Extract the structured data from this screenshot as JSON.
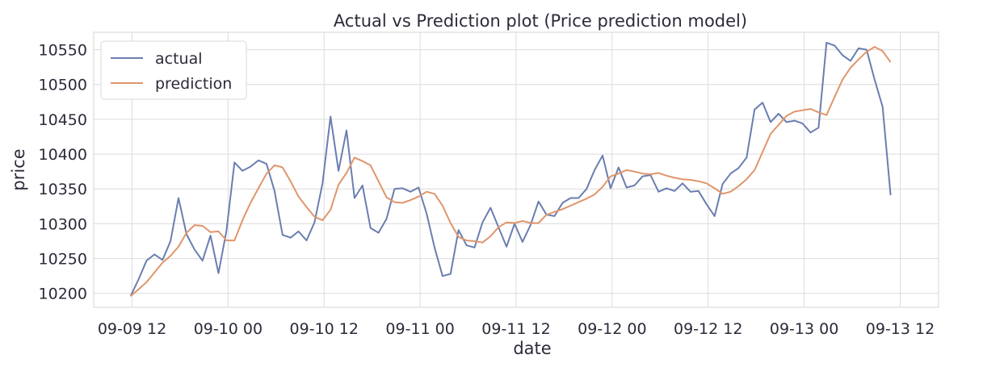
{
  "chart_data": {
    "type": "line",
    "title": "Actual vs Prediction plot (Price prediction model)",
    "xlabel": "date",
    "ylabel": "price",
    "grid": true,
    "legend_position": "top-left",
    "x_ticks": [
      "09-09 12",
      "09-10 00",
      "09-10 12",
      "09-11 00",
      "09-11 12",
      "09-12 00",
      "09-12 12",
      "09-13 00",
      "09-13 12"
    ],
    "x_tick_hours": [
      0,
      12,
      24,
      36,
      48,
      60,
      72,
      84,
      96
    ],
    "x_range_hours": [
      -4.8,
      100.8
    ],
    "y_ticks": [
      10200,
      10250,
      10300,
      10350,
      10400,
      10450,
      10500,
      10550
    ],
    "ylim": [
      10180,
      10575
    ],
    "series": [
      {
        "name": "actual",
        "color": "#6a7eb0",
        "points": [
          [
            -0.2,
            10196
          ],
          [
            0.8,
            10220
          ],
          [
            1.8,
            10247
          ],
          [
            2.8,
            10256
          ],
          [
            3.8,
            10248
          ],
          [
            4.8,
            10275
          ],
          [
            5.8,
            10337
          ],
          [
            6.8,
            10285
          ],
          [
            7.8,
            10263
          ],
          [
            8.8,
            10247
          ],
          [
            9.8,
            10283
          ],
          [
            10.8,
            10229
          ],
          [
            11.8,
            10290
          ],
          [
            12.8,
            10388
          ],
          [
            13.8,
            10376
          ],
          [
            14.8,
            10382
          ],
          [
            15.8,
            10391
          ],
          [
            16.8,
            10386
          ],
          [
            17.8,
            10347
          ],
          [
            18.8,
            10284
          ],
          [
            19.8,
            10280
          ],
          [
            20.8,
            10289
          ],
          [
            21.8,
            10276
          ],
          [
            22.8,
            10302
          ],
          [
            23.8,
            10358
          ],
          [
            24.8,
            10454
          ],
          [
            25.8,
            10376
          ],
          [
            26.8,
            10434
          ],
          [
            27.8,
            10337
          ],
          [
            28.8,
            10355
          ],
          [
            29.8,
            10294
          ],
          [
            30.8,
            10287
          ],
          [
            31.8,
            10307
          ],
          [
            32.8,
            10350
          ],
          [
            33.8,
            10351
          ],
          [
            34.8,
            10346
          ],
          [
            35.8,
            10352
          ],
          [
            36.8,
            10315
          ],
          [
            37.8,
            10266
          ],
          [
            38.8,
            10225
          ],
          [
            39.8,
            10228
          ],
          [
            40.8,
            10291
          ],
          [
            41.8,
            10269
          ],
          [
            42.8,
            10266
          ],
          [
            43.8,
            10302
          ],
          [
            44.8,
            10323
          ],
          [
            45.8,
            10295
          ],
          [
            46.8,
            10267
          ],
          [
            47.8,
            10300
          ],
          [
            48.8,
            10274
          ],
          [
            49.8,
            10298
          ],
          [
            50.8,
            10332
          ],
          [
            51.8,
            10313
          ],
          [
            52.8,
            10311
          ],
          [
            53.8,
            10330
          ],
          [
            54.8,
            10337
          ],
          [
            55.8,
            10337
          ],
          [
            56.8,
            10350
          ],
          [
            57.8,
            10377
          ],
          [
            58.8,
            10398
          ],
          [
            59.8,
            10351
          ],
          [
            60.8,
            10381
          ],
          [
            61.8,
            10352
          ],
          [
            62.8,
            10355
          ],
          [
            63.8,
            10368
          ],
          [
            64.8,
            10370
          ],
          [
            65.8,
            10346
          ],
          [
            66.8,
            10351
          ],
          [
            67.8,
            10347
          ],
          [
            68.8,
            10358
          ],
          [
            69.8,
            10346
          ],
          [
            70.8,
            10347
          ],
          [
            71.8,
            10328
          ],
          [
            72.8,
            10311
          ],
          [
            73.8,
            10357
          ],
          [
            74.8,
            10372
          ],
          [
            75.8,
            10380
          ],
          [
            76.8,
            10395
          ],
          [
            77.8,
            10464
          ],
          [
            78.8,
            10474
          ],
          [
            79.8,
            10446
          ],
          [
            80.8,
            10458
          ],
          [
            81.8,
            10446
          ],
          [
            82.8,
            10448
          ],
          [
            83.8,
            10444
          ],
          [
            84.8,
            10431
          ],
          [
            85.8,
            10438
          ],
          [
            86.8,
            10560
          ],
          [
            87.8,
            10556
          ],
          [
            88.8,
            10542
          ],
          [
            89.8,
            10534
          ],
          [
            90.8,
            10552
          ],
          [
            91.8,
            10550
          ],
          [
            92.8,
            10507
          ],
          [
            93.8,
            10468
          ],
          [
            94.8,
            10341
          ]
        ]
      },
      {
        "name": "prediction",
        "color": "#e0956b",
        "points": [
          [
            -0.2,
            10196
          ],
          [
            0.8,
            10206
          ],
          [
            1.8,
            10216
          ],
          [
            2.8,
            10230
          ],
          [
            3.8,
            10244
          ],
          [
            4.8,
            10254
          ],
          [
            5.8,
            10267
          ],
          [
            6.8,
            10287
          ],
          [
            7.8,
            10298
          ],
          [
            8.8,
            10297
          ],
          [
            9.8,
            10288
          ],
          [
            10.8,
            10289
          ],
          [
            11.8,
            10276
          ],
          [
            12.8,
            10276
          ],
          [
            13.8,
            10305
          ],
          [
            14.8,
            10330
          ],
          [
            15.8,
            10351
          ],
          [
            16.8,
            10372
          ],
          [
            17.8,
            10384
          ],
          [
            18.8,
            10381
          ],
          [
            19.8,
            10361
          ],
          [
            20.8,
            10339
          ],
          [
            21.8,
            10324
          ],
          [
            22.8,
            10310
          ],
          [
            23.8,
            10305
          ],
          [
            24.8,
            10320
          ],
          [
            25.8,
            10356
          ],
          [
            26.8,
            10373
          ],
          [
            27.8,
            10395
          ],
          [
            28.8,
            10390
          ],
          [
            29.8,
            10384
          ],
          [
            30.8,
            10361
          ],
          [
            31.8,
            10338
          ],
          [
            32.8,
            10331
          ],
          [
            33.8,
            10330
          ],
          [
            34.8,
            10334
          ],
          [
            35.8,
            10339
          ],
          [
            36.8,
            10346
          ],
          [
            37.8,
            10343
          ],
          [
            38.8,
            10326
          ],
          [
            39.8,
            10301
          ],
          [
            40.8,
            10281
          ],
          [
            41.8,
            10276
          ],
          [
            42.8,
            10275
          ],
          [
            43.8,
            10273
          ],
          [
            44.8,
            10282
          ],
          [
            45.8,
            10295
          ],
          [
            46.8,
            10302
          ],
          [
            47.8,
            10301
          ],
          [
            48.8,
            10304
          ],
          [
            49.8,
            10301
          ],
          [
            50.8,
            10301
          ],
          [
            51.8,
            10313
          ],
          [
            52.8,
            10317
          ],
          [
            53.8,
            10321
          ],
          [
            54.8,
            10326
          ],
          [
            55.8,
            10331
          ],
          [
            56.8,
            10336
          ],
          [
            57.8,
            10342
          ],
          [
            58.8,
            10353
          ],
          [
            59.8,
            10368
          ],
          [
            60.8,
            10372
          ],
          [
            61.8,
            10377
          ],
          [
            62.8,
            10375
          ],
          [
            63.8,
            10372
          ],
          [
            64.8,
            10371
          ],
          [
            65.8,
            10373
          ],
          [
            66.8,
            10369
          ],
          [
            67.8,
            10366
          ],
          [
            68.8,
            10364
          ],
          [
            69.8,
            10363
          ],
          [
            70.8,
            10361
          ],
          [
            71.8,
            10358
          ],
          [
            72.8,
            10351
          ],
          [
            73.8,
            10343
          ],
          [
            74.8,
            10346
          ],
          [
            75.8,
            10354
          ],
          [
            76.8,
            10364
          ],
          [
            77.8,
            10377
          ],
          [
            78.8,
            10403
          ],
          [
            79.8,
            10429
          ],
          [
            80.8,
            10442
          ],
          [
            81.8,
            10455
          ],
          [
            82.8,
            10461
          ],
          [
            83.8,
            10463
          ],
          [
            84.8,
            10465
          ],
          [
            85.8,
            10460
          ],
          [
            86.8,
            10456
          ],
          [
            87.8,
            10482
          ],
          [
            88.8,
            10507
          ],
          [
            89.8,
            10524
          ],
          [
            90.8,
            10536
          ],
          [
            91.8,
            10547
          ],
          [
            92.8,
            10554
          ],
          [
            93.8,
            10548
          ],
          [
            94.8,
            10532
          ]
        ]
      }
    ]
  }
}
